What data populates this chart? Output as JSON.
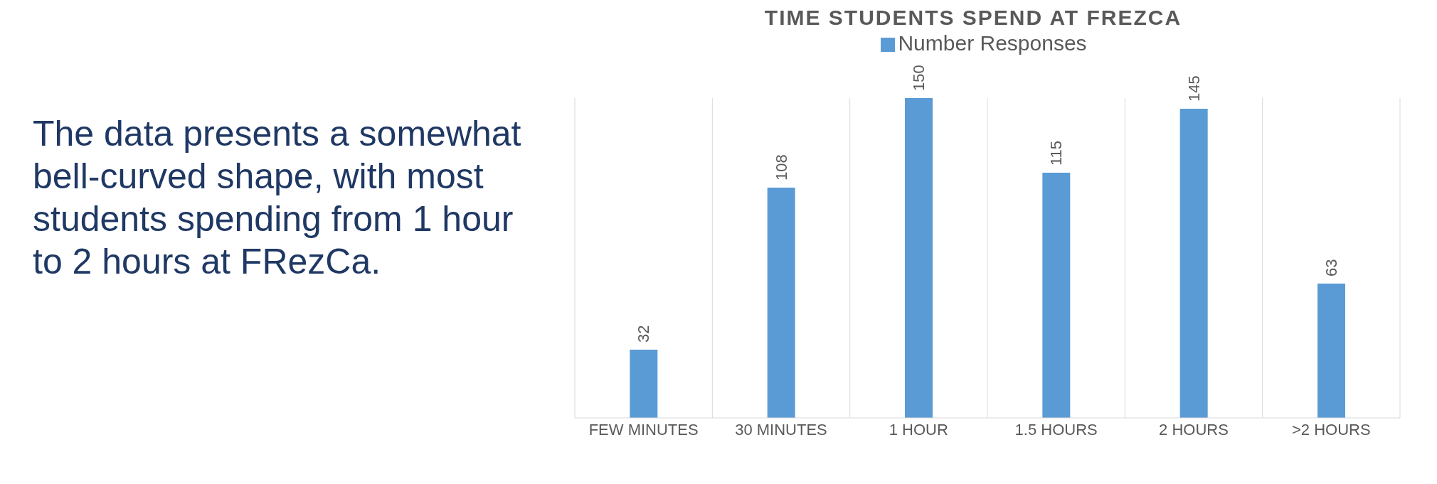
{
  "chart_data": {
    "type": "bar",
    "title": "TIME STUDENTS SPEND AT FREZCA",
    "categories": [
      "FEW MINUTES",
      "30 MINUTES",
      "1 HOUR",
      "1.5 HOURS",
      "2 HOURS",
      ">2 HOURS"
    ],
    "series": [
      {
        "name": "Number Responses",
        "color": "#5b9bd5",
        "values": [
          32,
          108,
          150,
          115,
          145,
          63
        ]
      }
    ],
    "data_labels": true,
    "grid": "x",
    "legend": "top",
    "tick_labels": "x",
    "annotations": [
      "The data presents a somewhat bell-curved shape, with most students spending from 1 hour to 2 hours at FRezCa."
    ]
  }
}
